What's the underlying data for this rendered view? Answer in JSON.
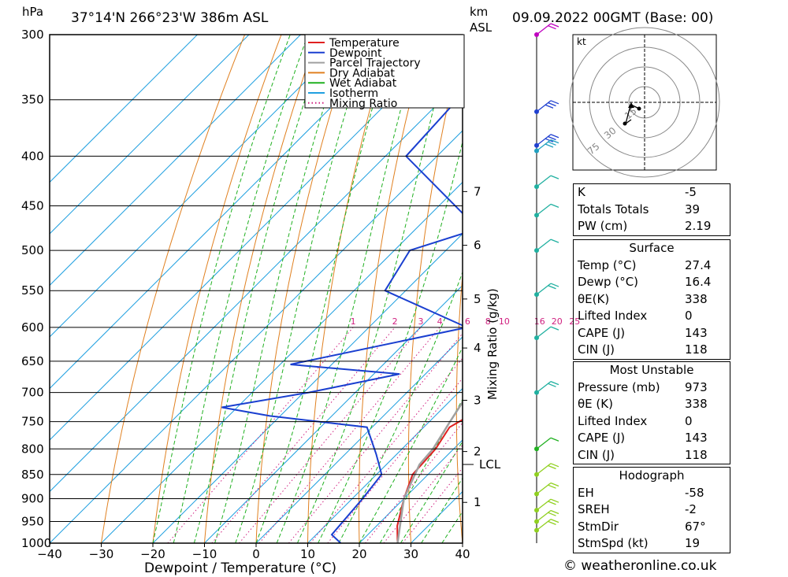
{
  "header": {
    "location": "37°14'N  266°23'W  386m  ASL",
    "date": "09.09.2022  00GMT  (Base: 00)",
    "hpa_unit": "hPa",
    "km_unit": "km",
    "asl_unit": "ASL"
  },
  "credit": "© weatheronline.co.uk",
  "chart_data": {
    "type": "line",
    "xlabel": "Dewpoint / Temperature (°C)",
    "ylabel": "hPa",
    "y2label": "Mixing Ratio (g/kg)",
    "xlim": [
      -40,
      40
    ],
    "ylim": [
      1000,
      300
    ],
    "y_scale": "log",
    "skew": "skew-T",
    "x_ticks": [
      -40,
      -30,
      -20,
      -10,
      0,
      10,
      20,
      30,
      40
    ],
    "pressure_levels": [
      300,
      350,
      400,
      450,
      500,
      550,
      600,
      650,
      700,
      750,
      800,
      850,
      900,
      950,
      1000
    ],
    "km_ticks": [
      {
        "label": "7",
        "p": 435
      },
      {
        "label": "6",
        "p": 494
      },
      {
        "label": "5",
        "p": 561
      },
      {
        "label": "4",
        "p": 630
      },
      {
        "label": "3",
        "p": 713
      },
      {
        "label": "2",
        "p": 805
      },
      {
        "label": "1",
        "p": 908
      }
    ],
    "lcl": {
      "label": "LCL",
      "p": 830
    },
    "mixing_ratio_labels": [
      "1",
      "2",
      "3",
      "4",
      "6",
      "8",
      "10",
      "16",
      "20",
      "25"
    ],
    "mixing_ratio_values": [
      1,
      2,
      3,
      4,
      6,
      8,
      10,
      16,
      20,
      25
    ],
    "legend": [
      {
        "name": "Temperature",
        "color": "#e02020",
        "style": "solid"
      },
      {
        "name": "Dewpoint",
        "color": "#1a3fd0",
        "style": "solid"
      },
      {
        "name": "Parcel Trajectory",
        "color": "#a0a0a0",
        "style": "solid"
      },
      {
        "name": "Dry Adiabat",
        "color": "#e08020",
        "style": "solid"
      },
      {
        "name": "Wet Adiabat",
        "color": "#20b020",
        "style": "solid"
      },
      {
        "name": "Isotherm",
        "color": "#20a0e0",
        "style": "solid"
      },
      {
        "name": "Mixing Ratio",
        "color": "#d02080",
        "style": "dotted"
      }
    ],
    "series": [
      {
        "name": "Temperature",
        "points": [
          [
            1000,
            27.4
          ],
          [
            960,
            24
          ],
          [
            900,
            20
          ],
          [
            850,
            17
          ],
          [
            800,
            16.5
          ],
          [
            760,
            15
          ],
          [
            735,
            17
          ],
          [
            700,
            17
          ],
          [
            680,
            16.5
          ],
          [
            650,
            16
          ],
          [
            600,
            12
          ],
          [
            550,
            8
          ],
          [
            500,
            3
          ],
          [
            470,
            -1
          ],
          [
            400,
            -8.5
          ],
          [
            350,
            -16
          ],
          [
            300,
            -25
          ]
        ]
      },
      {
        "name": "Dewpoint",
        "points": [
          [
            1000,
            16.4
          ],
          [
            980,
            13
          ],
          [
            900,
            12
          ],
          [
            850,
            11
          ],
          [
            810,
            6
          ],
          [
            760,
            -1
          ],
          [
            740,
            -22
          ],
          [
            725,
            -33
          ],
          [
            700,
            -19
          ],
          [
            670,
            -5
          ],
          [
            655,
            -28
          ],
          [
            600,
            -1
          ],
          [
            550,
            -24
          ],
          [
            500,
            -27
          ],
          [
            475,
            -18
          ],
          [
            400,
            -46
          ],
          [
            350,
            -47
          ],
          [
            300,
            -52
          ]
        ]
      },
      {
        "name": "Parcel Trajectory",
        "points": [
          [
            1000,
            27.4
          ],
          [
            900,
            20
          ],
          [
            830,
            16.4
          ],
          [
            800,
            16
          ],
          [
            750,
            14
          ],
          [
            700,
            12
          ],
          [
            650,
            9
          ],
          [
            600,
            5.5
          ],
          [
            550,
            2
          ],
          [
            500,
            -1.5
          ],
          [
            450,
            -6
          ],
          [
            400,
            -11
          ],
          [
            350,
            -17
          ],
          [
            300,
            -23
          ]
        ]
      }
    ]
  },
  "hodograph": {
    "unit": "kt",
    "ring_labels": [
      "15",
      "30",
      "75"
    ]
  },
  "indices": {
    "rows": [
      {
        "k": "K",
        "v": "-5"
      },
      {
        "k": "Totals Totals",
        "v": "39"
      },
      {
        "k": "PW (cm)",
        "v": "2.19"
      }
    ]
  },
  "surface": {
    "title": "Surface",
    "rows": [
      {
        "k": "Temp (°C)",
        "v": "27.4"
      },
      {
        "k": "Dewp (°C)",
        "v": "16.4"
      },
      {
        "k": "θE(K)",
        "v": "338"
      },
      {
        "k": "Lifted Index",
        "v": "0"
      },
      {
        "k": "CAPE (J)",
        "v": "143"
      },
      {
        "k": "CIN (J)",
        "v": "118"
      }
    ]
  },
  "most_unstable": {
    "title": "Most Unstable",
    "rows": [
      {
        "k": "Pressure (mb)",
        "v": "973"
      },
      {
        "k": "θE (K)",
        "v": "338"
      },
      {
        "k": "Lifted Index",
        "v": "0"
      },
      {
        "k": "CAPE (J)",
        "v": "143"
      },
      {
        "k": "CIN (J)",
        "v": "118"
      }
    ]
  },
  "hodograph_table": {
    "title": "Hodograph",
    "rows": [
      {
        "k": "EH",
        "v": "-58"
      },
      {
        "k": "SREH",
        "v": "-2"
      },
      {
        "k": "StmDir",
        "v": "67°"
      },
      {
        "k": "StmSpd (kt)",
        "v": "19"
      }
    ]
  },
  "wind_profile": {
    "levels": [
      {
        "p": 300,
        "color": "#c000c0",
        "barbs": 2
      },
      {
        "p": 360,
        "color": "#2040d0",
        "barbs": 3
      },
      {
        "p": 390,
        "color": "#2040d0",
        "barbs": 3
      },
      {
        "p": 395,
        "color": "#20a0c0",
        "barbs": 3
      },
      {
        "p": 430,
        "color": "#20b0a0",
        "barbs": 1
      },
      {
        "p": 460,
        "color": "#20b0a0",
        "barbs": 1
      },
      {
        "p": 500,
        "color": "#20b0a0",
        "barbs": 1
      },
      {
        "p": 555,
        "color": "#20b0a0",
        "barbs": 2
      },
      {
        "p": 615,
        "color": "#20b0a0",
        "barbs": 1
      },
      {
        "p": 700,
        "color": "#20b0a0",
        "barbs": 2
      },
      {
        "p": 800,
        "color": "#20b020",
        "barbs": 1
      },
      {
        "p": 850,
        "color": "#90d020",
        "barbs": 2
      },
      {
        "p": 890,
        "color": "#90d020",
        "barbs": 2
      },
      {
        "p": 925,
        "color": "#90d020",
        "barbs": 2
      },
      {
        "p": 950,
        "color": "#90d020",
        "barbs": 2
      },
      {
        "p": 970,
        "color": "#90d020",
        "barbs": 2
      }
    ]
  }
}
